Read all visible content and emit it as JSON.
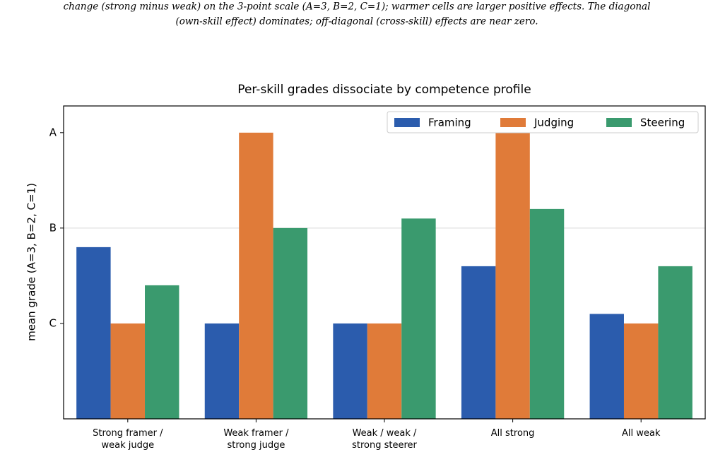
{
  "caption": [
    "change (strong minus weak) on the 3-point scale (A=3, B=2, C=1); warmer cells are larger positive effects. The diagonal",
    "(own-skill effect) dominates; off-diagonal (cross-skill) effects are near zero."
  ],
  "chart_data": {
    "type": "bar",
    "title": "Per-skill grades dissociate by competence profile",
    "y_label": "mean grade (A=3, B=2, C=1)",
    "categories": [
      "Strong framer /\nweak judge",
      "Weak framer /\nstrong judge",
      "Weak / weak /\nstrong steerer",
      "All strong",
      "All weak"
    ],
    "series": [
      {
        "name": "Framing",
        "color": "#2b5cad",
        "values": [
          1.8,
          1.0,
          1.0,
          1.6,
          1.1
        ]
      },
      {
        "name": "Judging",
        "color": "#e07b39",
        "values": [
          1.0,
          3.0,
          1.0,
          3.0,
          1.0
        ]
      },
      {
        "name": "Steering",
        "color": "#3a9a6e",
        "values": [
          1.4,
          2.0,
          2.1,
          2.2,
          1.6
        ]
      }
    ],
    "ylim": [
      0,
      3.28
    ],
    "yticks": [
      {
        "value": 1,
        "label": "C"
      },
      {
        "value": 2,
        "label": "B"
      },
      {
        "value": 3,
        "label": "A"
      }
    ],
    "hline": 2,
    "legend": "upper right"
  }
}
